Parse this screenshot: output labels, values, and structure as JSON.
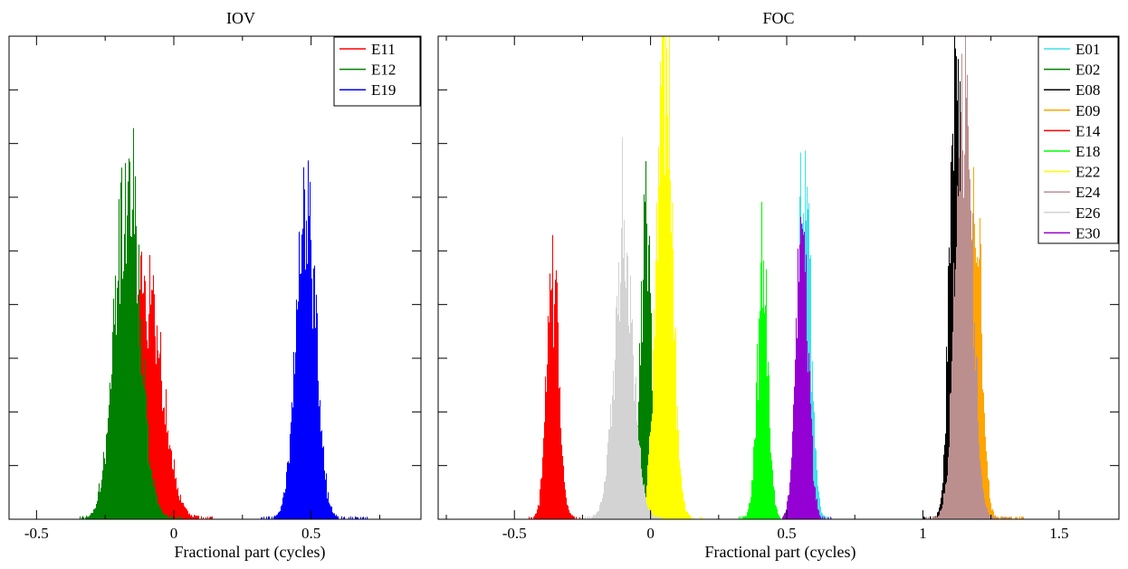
{
  "chart_data": [
    {
      "type": "histogram",
      "title": "IOV",
      "xlabel": "Fractional part (cycles)",
      "ylabel": "",
      "xlim": [
        -0.6,
        0.9
      ],
      "x_ticks": [
        -0.5,
        0,
        0.5
      ],
      "x_tick_labels": [
        "-0.5",
        "0",
        "0.5"
      ],
      "y_tick_count": 9,
      "y_tick_labels_shown": false,
      "grid": false,
      "legend_position": "top-right",
      "series": [
        {
          "name": "E11",
          "color": "#ff0000",
          "mean": -0.1,
          "std": 0.055,
          "peak": 0.48,
          "range": [
            -0.27,
            0.14
          ]
        },
        {
          "name": "E12",
          "color": "#008000",
          "mean": -0.17,
          "std": 0.045,
          "peak": 0.7,
          "range": [
            -0.34,
            0.02
          ]
        },
        {
          "name": "E19",
          "color": "#0000ff",
          "mean": 0.48,
          "std": 0.035,
          "peak": 0.67,
          "range": [
            0.3,
            0.7
          ]
        }
      ]
    },
    {
      "type": "histogram",
      "title": "FOC",
      "xlabel": "Fractional part (cycles)",
      "ylabel": "",
      "xlim": [
        -0.78,
        1.72
      ],
      "x_ticks": [
        -0.5,
        0,
        0.5,
        1,
        1.5
      ],
      "x_tick_labels": [
        "-0.5",
        "0",
        "0.5",
        "1",
        "1.5"
      ],
      "y_tick_count": 9,
      "y_tick_labels_shown": false,
      "grid": false,
      "legend_position": "top-right",
      "series": [
        {
          "name": "E01",
          "color": "#40e0e8",
          "mean": 0.565,
          "std": 0.022,
          "peak": 0.7,
          "range": [
            0.47,
            0.66
          ]
        },
        {
          "name": "E02",
          "color": "#008000",
          "mean": -0.02,
          "std": 0.018,
          "peak": 0.65,
          "range": [
            -0.1,
            0.06
          ]
        },
        {
          "name": "E08",
          "color": "#000000",
          "mean": 1.12,
          "std": 0.022,
          "peak": 0.98,
          "range": [
            1.0,
            1.25
          ]
        },
        {
          "name": "E09",
          "color": "#ffa500",
          "mean": 1.19,
          "std": 0.024,
          "peak": 0.63,
          "range": [
            1.07,
            1.38
          ]
        },
        {
          "name": "E14",
          "color": "#ff0000",
          "mean": -0.36,
          "std": 0.022,
          "peak": 0.54,
          "range": [
            -0.46,
            -0.24
          ]
        },
        {
          "name": "E18",
          "color": "#00ff00",
          "mean": 0.41,
          "std": 0.02,
          "peak": 0.52,
          "range": [
            0.32,
            0.52
          ]
        },
        {
          "name": "E22",
          "color": "#ffff00",
          "mean": 0.05,
          "std": 0.028,
          "peak": 0.92,
          "range": [
            -0.06,
            0.2
          ]
        },
        {
          "name": "E24",
          "color": "#bc8f8f",
          "mean": 1.15,
          "std": 0.03,
          "peak": 0.89,
          "range": [
            1.01,
            1.33
          ]
        },
        {
          "name": "E26",
          "color": "#d3d3d3",
          "mean": -0.1,
          "std": 0.035,
          "peak": 0.55,
          "range": [
            -0.24,
            0.04
          ]
        },
        {
          "name": "E30",
          "color": "#9400d3",
          "mean": 0.555,
          "std": 0.022,
          "peak": 0.62,
          "range": [
            0.47,
            0.66
          ]
        }
      ]
    }
  ]
}
